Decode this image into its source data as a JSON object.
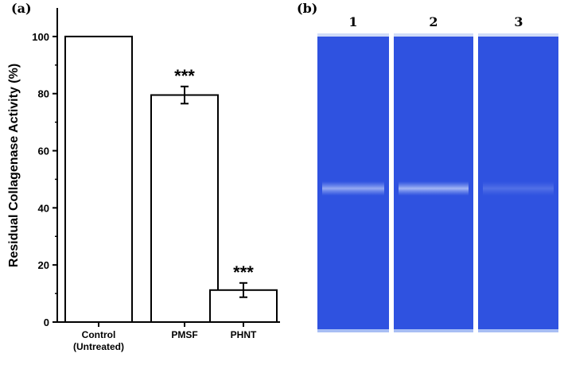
{
  "panels": {
    "a_label": "(a)",
    "b_label": "(b)"
  },
  "chart_data": {
    "type": "bar",
    "categories": [
      [
        "Control",
        "(Untreated)"
      ],
      [
        "PMSF"
      ],
      [
        "PHNT"
      ]
    ],
    "values": [
      100,
      79.5,
      11.2
    ],
    "errors": [
      0,
      3.0,
      2.5
    ],
    "significance": [
      "",
      "***",
      "***"
    ],
    "xlabel": "",
    "ylabel": "Residual Collagenase Activity (%)",
    "ylim": [
      0,
      110
    ],
    "yticks": [
      0,
      20,
      40,
      60,
      80,
      100
    ],
    "grid": false,
    "bar_fill": "#ffffff",
    "bar_stroke": "#000000"
  },
  "gel": {
    "lanes": [
      "1",
      "2",
      "3"
    ],
    "background_color": "#2f52e0",
    "band_color": "#8fa8f0",
    "band_intensity": [
      0.75,
      0.85,
      0.25
    ]
  }
}
